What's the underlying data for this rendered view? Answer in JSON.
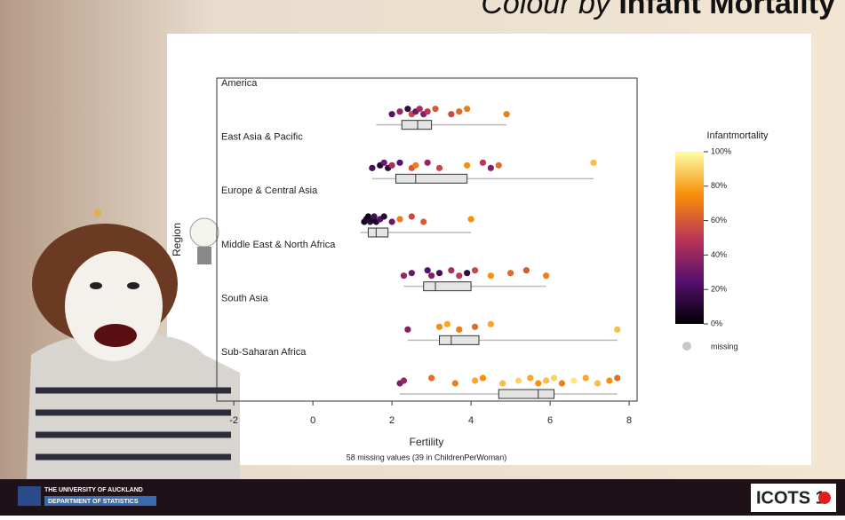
{
  "slide": {
    "title_italic": "Colour by",
    "title_bold": "Infant Mortality",
    "university": "THE UNIVERSITY OF AUCKLAND",
    "department": "DEPARTMENT OF STATISTICS",
    "logo": "ICOTS 1"
  },
  "chart_data": {
    "type": "dot-box",
    "xlabel": "Fertility",
    "ylabel": "Region",
    "note": "58 missing values (39 in ChildrenPerWoman)",
    "xlim": [
      -2.43,
      8.2
    ],
    "xticks": [
      -2,
      0,
      2,
      4,
      6,
      8
    ],
    "box_color": "#e4e4e4",
    "groups": [
      {
        "name": "America",
        "box": [
          1.6,
          2.25,
          2.65,
          3.0,
          4.9
        ],
        "points": [
          2.0,
          2.2,
          2.4,
          2.5,
          2.6,
          2.7,
          2.8,
          2.9,
          3.1,
          3.5,
          3.7,
          3.9,
          4.9
        ],
        "mortality": [
          25,
          40,
          15,
          55,
          30,
          45,
          35,
          50,
          60,
          55,
          65,
          70,
          70
        ]
      },
      {
        "name": "East Asia & Pacific",
        "box": [
          1.5,
          2.1,
          2.6,
          3.9,
          7.1
        ],
        "points": [
          1.5,
          1.7,
          1.8,
          1.9,
          2.0,
          2.2,
          2.5,
          2.6,
          2.9,
          3.2,
          3.9,
          4.3,
          4.5,
          4.7,
          7.1
        ],
        "mortality": [
          20,
          10,
          30,
          15,
          45,
          25,
          60,
          70,
          40,
          55,
          75,
          50,
          35,
          65,
          85
        ]
      },
      {
        "name": "Europe & Central Asia",
        "box": [
          1.2,
          1.4,
          1.6,
          1.9,
          4.0
        ],
        "points": [
          1.3,
          1.35,
          1.4,
          1.45,
          1.5,
          1.55,
          1.6,
          1.7,
          1.8,
          2.0,
          2.2,
          2.5,
          2.8,
          4.0
        ],
        "mortality": [
          5,
          10,
          3,
          15,
          8,
          20,
          6,
          25,
          12,
          30,
          70,
          55,
          60,
          75
        ]
      },
      {
        "name": "Middle East & North Africa",
        "box": [
          2.3,
          2.8,
          3.1,
          4.0,
          5.9
        ],
        "points": [
          2.3,
          2.5,
          2.9,
          3.0,
          3.2,
          3.5,
          3.7,
          3.9,
          4.1,
          4.5,
          5.0,
          5.4,
          5.9
        ],
        "mortality": [
          40,
          30,
          25,
          35,
          20,
          45,
          50,
          15,
          55,
          75,
          65,
          60,
          70
        ]
      },
      {
        "name": "South Asia",
        "box": [
          2.4,
          3.2,
          3.5,
          4.2,
          7.7
        ],
        "points": [
          2.4,
          3.2,
          3.4,
          3.7,
          4.1,
          4.5,
          7.7
        ],
        "mortality": [
          35,
          75,
          80,
          70,
          65,
          80,
          85
        ]
      },
      {
        "name": "Sub-Saharan Africa",
        "box": [
          2.2,
          4.7,
          5.7,
          6.1,
          7.7
        ],
        "points": [
          2.2,
          2.3,
          3.0,
          3.6,
          4.1,
          4.3,
          4.8,
          5.2,
          5.5,
          5.7,
          5.9,
          6.1,
          6.3,
          6.6,
          6.9,
          7.2,
          7.5,
          7.7
        ],
        "mortality": [
          35,
          40,
          65,
          70,
          80,
          75,
          85,
          90,
          80,
          75,
          85,
          90,
          70,
          95,
          80,
          85,
          75,
          65
        ]
      }
    ],
    "color_label": "Infantmortality",
    "colorlim": [
      0,
      100
    ],
    "colorticks": [
      {
        "value": 0,
        "label": "0%"
      },
      {
        "value": 20,
        "label": "20%"
      },
      {
        "value": 40,
        "label": "40%"
      },
      {
        "value": 60,
        "label": "60%"
      },
      {
        "value": 80,
        "label": "80%"
      },
      {
        "value": 100,
        "label": "100%"
      }
    ],
    "colormap": [
      "#000004",
      "#57106e",
      "#bc3754",
      "#f98e09",
      "#fcffa4"
    ],
    "missing_label": "missing",
    "missing_color": "#c8c8c8"
  }
}
